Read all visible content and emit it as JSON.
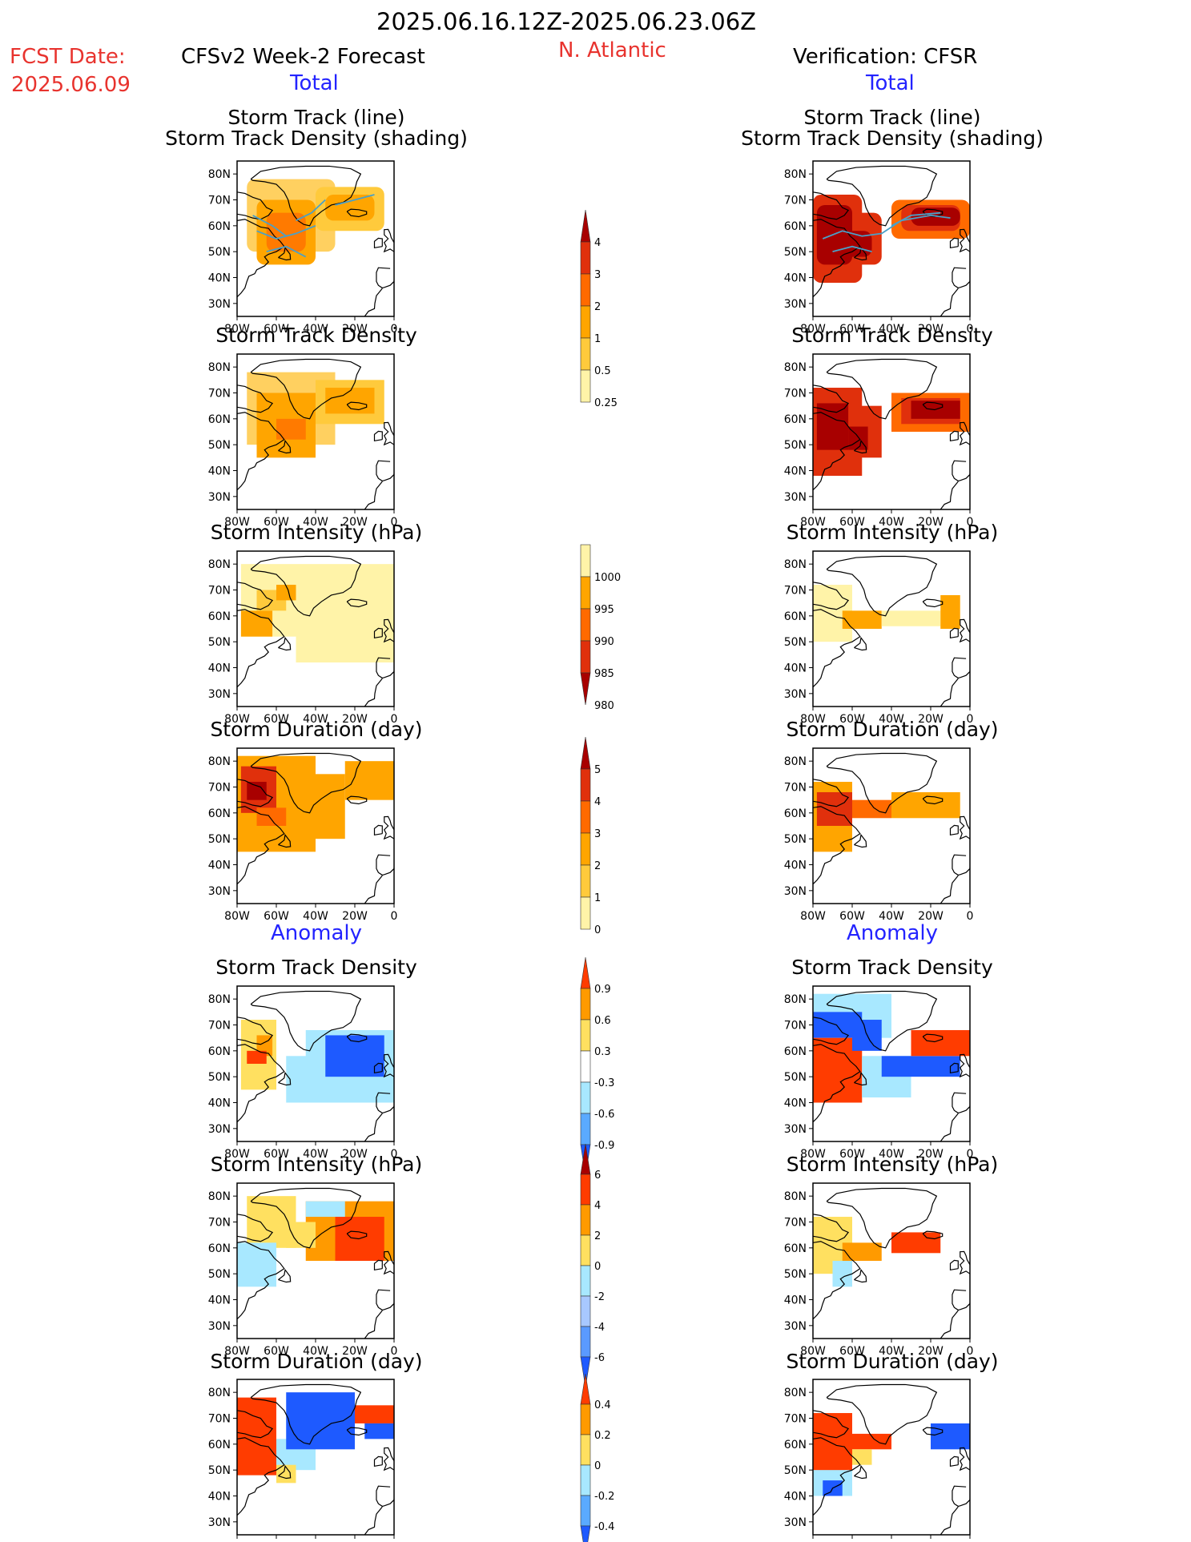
{
  "header": {
    "period": "2025.06.16.12Z-2025.06.23.06Z",
    "fcst_label": "FCST Date:",
    "fcst_date": "2025.06.09",
    "left_title": "CFSv2 Week-2 Forecast",
    "region": "N. Atlantic",
    "right_title": "Verification: CFSR",
    "total_label": "Total",
    "anomaly_label": "Anomaly"
  },
  "panel_titles": {
    "track_line": "Storm Track (line)",
    "track_shade": "Storm Track Density (shading)",
    "density": "Storm Track Density",
    "intensity": "Storm Intensity (hPa)",
    "duration": "Storm Duration (day)"
  },
  "axes": {
    "lon_ticks": [
      "80W",
      "60W",
      "40W",
      "20W",
      "0"
    ],
    "lat_ticks": [
      "80N",
      "70N",
      "60N",
      "50N",
      "40N",
      "30N"
    ]
  },
  "chart_data": [
    {
      "type": "heatmap",
      "id": "fc-track",
      "title": "Storm Track (line) / Storm Track Density (shading)",
      "column": "CFSv2 Week-2 Forecast",
      "section": "Total",
      "shading": [
        {
          "lon": -55,
          "lat": 56,
          "value": 3
        },
        {
          "lon": -65,
          "lat": 62,
          "value": 2
        },
        {
          "lon": -20,
          "lat": 68,
          "value": 1
        }
      ]
    },
    {
      "type": "heatmap",
      "id": "ob-track",
      "title": "Storm Track (line) / Storm Track Density (shading)",
      "column": "Verification: CFSR",
      "section": "Total",
      "shading": [
        {
          "lon": -70,
          "lat": 62,
          "value": 4
        },
        {
          "lon": -55,
          "lat": 55,
          "value": 4
        },
        {
          "lon": -25,
          "lat": 64,
          "value": 4
        },
        {
          "lon": -10,
          "lat": 64,
          "value": 4
        }
      ]
    },
    {
      "type": "heatmap",
      "id": "fc-density",
      "title": "Storm Track Density",
      "section": "Total"
    },
    {
      "type": "heatmap",
      "id": "ob-density",
      "title": "Storm Track Density",
      "section": "Total"
    },
    {
      "type": "heatmap",
      "id": "fc-intensity",
      "title": "Storm Intensity (hPa)",
      "section": "Total"
    },
    {
      "type": "heatmap",
      "id": "ob-intensity",
      "title": "Storm Intensity (hPa)",
      "section": "Total"
    },
    {
      "type": "heatmap",
      "id": "fc-duration",
      "title": "Storm Duration (day)",
      "section": "Total"
    },
    {
      "type": "heatmap",
      "id": "ob-duration",
      "title": "Storm Duration (day)",
      "section": "Total"
    },
    {
      "type": "heatmap",
      "id": "fc-a-density",
      "title": "Storm Track Density",
      "section": "Anomaly"
    },
    {
      "type": "heatmap",
      "id": "ob-a-density",
      "title": "Storm Track Density",
      "section": "Anomaly"
    },
    {
      "type": "heatmap",
      "id": "fc-a-intensity",
      "title": "Storm Intensity (hPa)",
      "section": "Anomaly"
    },
    {
      "type": "heatmap",
      "id": "ob-a-intensity",
      "title": "Storm Intensity (hPa)",
      "section": "Anomaly"
    },
    {
      "type": "heatmap",
      "id": "fc-a-duration",
      "title": "Storm Duration (day)",
      "section": "Anomaly"
    },
    {
      "type": "heatmap",
      "id": "ob-a-duration",
      "title": "Storm Duration (day)",
      "section": "Anomaly"
    }
  ],
  "colorbars": [
    {
      "id": "cb-density",
      "labels": [
        "4",
        "3",
        "2",
        "1",
        "0.5",
        "0.25"
      ],
      "colors": [
        "#a80000",
        "#e0300c",
        "#ff6a00",
        "#ffa500",
        "#ffca3c",
        "#fff3a8"
      ]
    },
    {
      "id": "cb-intensity",
      "labels": [
        "1000",
        "995",
        "990",
        "985",
        "980"
      ],
      "colors": [
        "#fff3a8",
        "#ffa500",
        "#ff6a00",
        "#e0300c",
        "#a80000"
      ]
    },
    {
      "id": "cb-duration",
      "labels": [
        "5",
        "4",
        "3",
        "2",
        "1",
        "0"
      ],
      "colors": [
        "#a80000",
        "#e0300c",
        "#ff6a00",
        "#ffa500",
        "#ffca3c",
        "#fff3a8"
      ]
    },
    {
      "id": "cb-a-density",
      "labels": [
        "0.9",
        "0.6",
        "0.3",
        "-0.3",
        "-0.6",
        "-0.9"
      ],
      "colors": [
        "#ff3c00",
        "#ff9a00",
        "#ffe060",
        "#ffffff",
        "#a8e8ff",
        "#5aaaff",
        "#1e5aff"
      ]
    },
    {
      "id": "cb-a-intensity",
      "labels": [
        "6",
        "4",
        "2",
        "0",
        "-2",
        "-4",
        "-6"
      ],
      "colors": [
        "#a80000",
        "#ff3c00",
        "#ff9a00",
        "#ffe060",
        "#a8e8ff",
        "#a8c8ff",
        "#5a9aff",
        "#1e5aff"
      ]
    },
    {
      "id": "cb-a-duration",
      "labels": [
        "0.4",
        "0.2",
        "0",
        "-0.2",
        "-0.4"
      ],
      "colors": [
        "#ff3c00",
        "#ff9a00",
        "#ffe060",
        "#a8e8ff",
        "#5aaaff",
        "#1e5aff"
      ]
    }
  ],
  "colors": {
    "title_red": "#e8332e",
    "label_blue": "#2323ff"
  }
}
